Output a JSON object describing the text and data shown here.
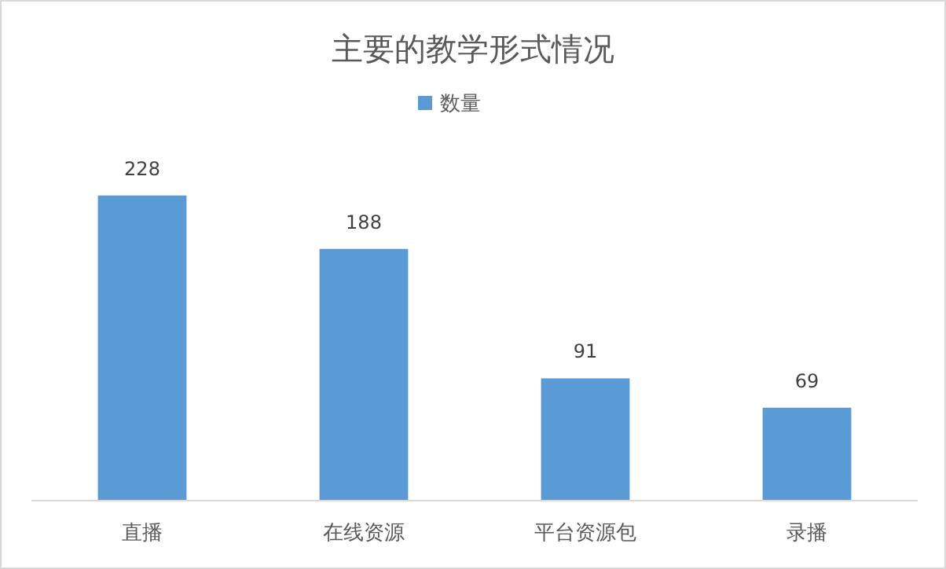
{
  "chart_data": {
    "type": "bar",
    "title": "主要的教学形式情况",
    "categories": [
      "直播",
      "在线资源",
      "平台资源包",
      "录播"
    ],
    "series": [
      {
        "name": "数量",
        "color": "#5b9bd5",
        "values": [
          228,
          188,
          91,
          69
        ]
      }
    ],
    "data_labels": true,
    "legend": "top",
    "grid": false
  }
}
